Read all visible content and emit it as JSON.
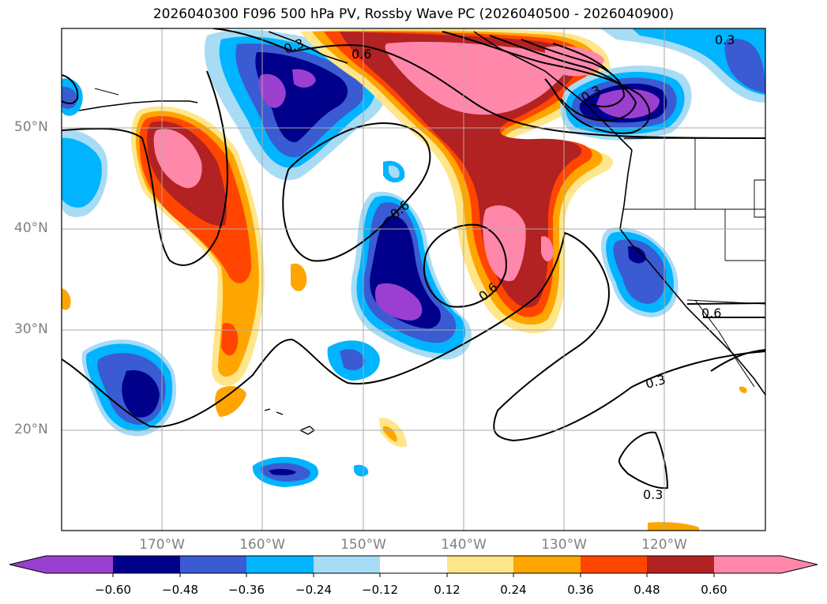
{
  "title": "2026040300 F096 500 hPa PV, Rossby Wave PC (2026040500 - 2026040900)",
  "map": {
    "lat_labels": [
      "50°N",
      "40°N",
      "30°N",
      "20°N"
    ],
    "lon_labels": [
      "170°W",
      "160°W",
      "150°W",
      "140°W",
      "130°W",
      "120°W"
    ],
    "contour_labels": [
      "0.6",
      "0.3",
      "0.6",
      "0.6",
      "0.3",
      "0.3",
      "0.3",
      "0.3",
      "0.6"
    ],
    "colors": {
      "neg_extend": "#9b3fd1",
      "neg_060": "#00008b",
      "neg_048": "#3a5bd1",
      "neg_036": "#00b4ff",
      "neg_024": "#a8dcf5",
      "neutral": "#ffffff",
      "pos_012": "#ffe68a",
      "pos_024": "#ffa500",
      "pos_036": "#ff4500",
      "pos_048": "#b22222",
      "pos_060": "#ff88aa"
    }
  },
  "colorbar": {
    "ticks": [
      "−0.60",
      "−0.48",
      "−0.36",
      "−0.24",
      "−0.12",
      "0.12",
      "0.24",
      "0.36",
      "0.48",
      "0.60"
    ]
  }
}
